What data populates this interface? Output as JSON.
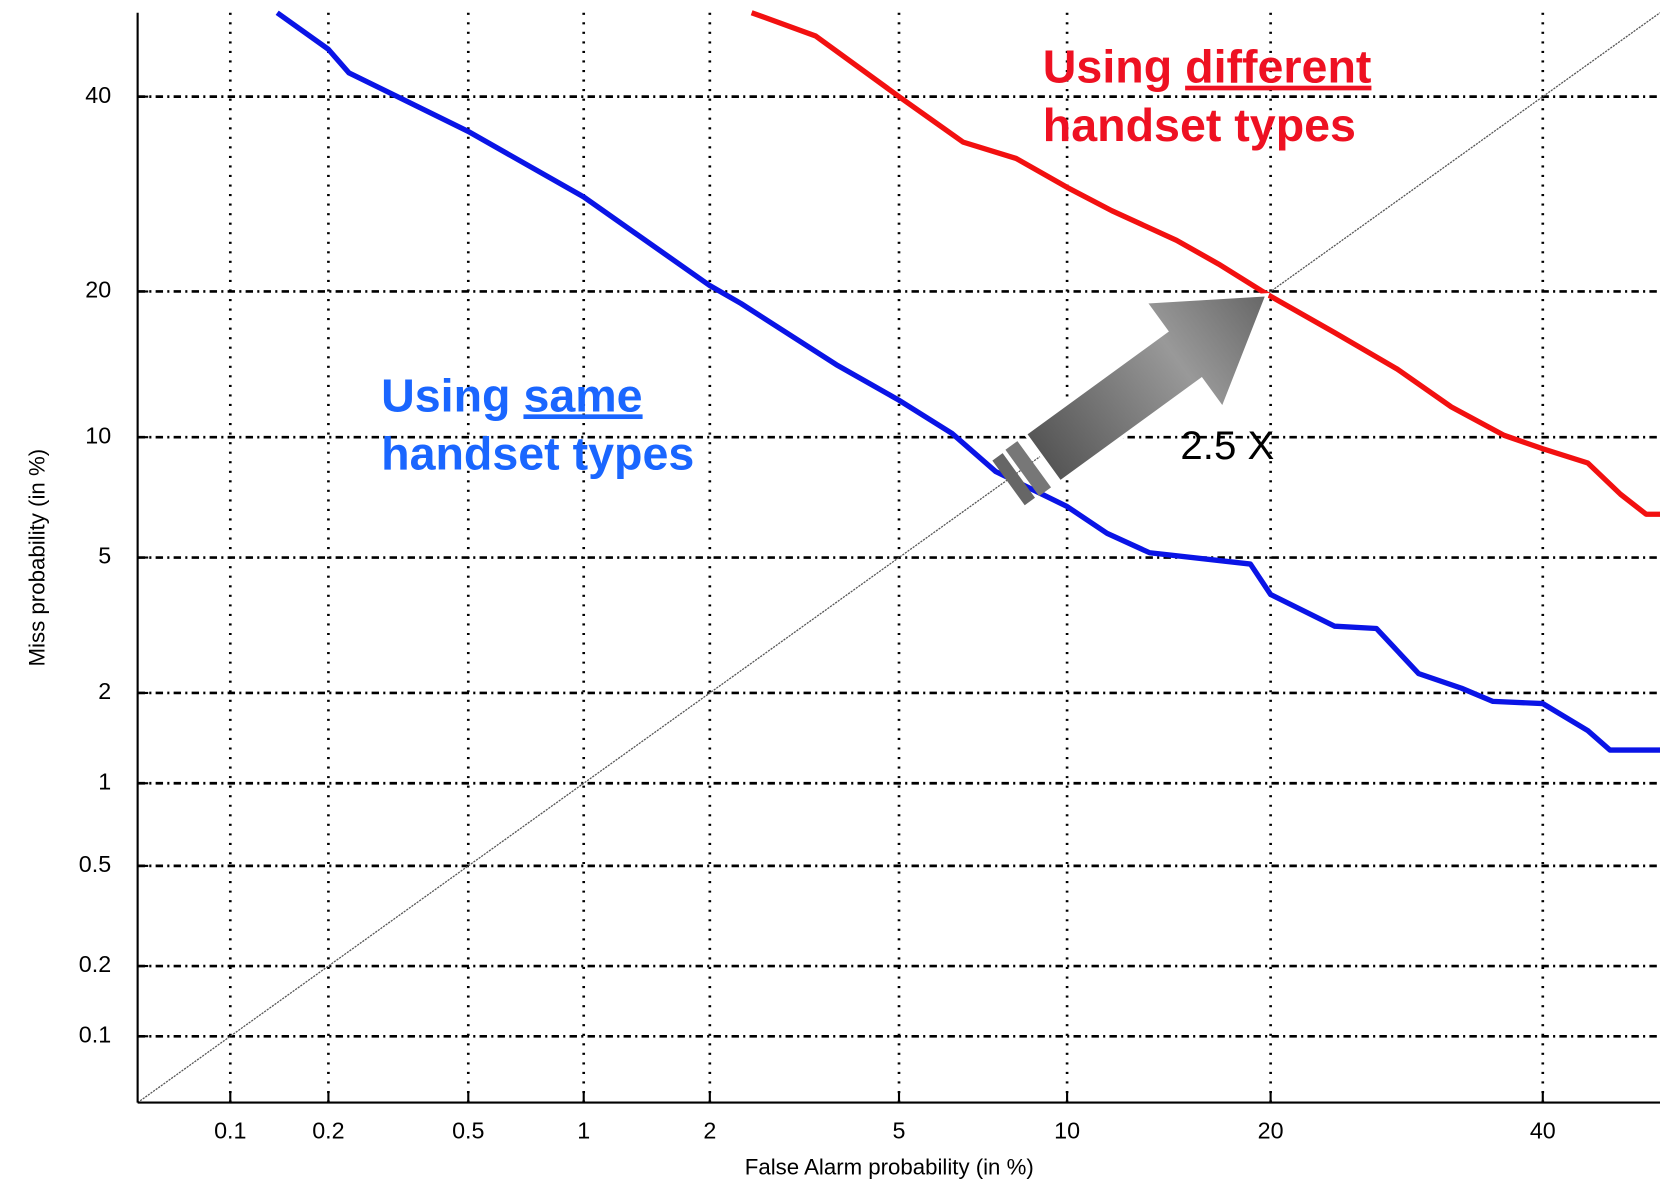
{
  "chart_data": {
    "type": "line",
    "xlabel": "False Alarm probability (in %)",
    "ylabel": "Miss probability (in %)",
    "scale": "normal-deviate",
    "grid": true,
    "xlim": [
      0.05,
      50
    ],
    "ylim": [
      0.05,
      50
    ],
    "xticks": [
      0.1,
      0.2,
      0.5,
      1,
      2,
      5,
      10,
      20,
      40
    ],
    "yticks": [
      0.1,
      0.2,
      0.5,
      1,
      2,
      5,
      10,
      20,
      40
    ],
    "series": [
      {
        "color": "#0a14e6",
        "x": [
          0.14,
          0.2,
          0.23,
          0.5,
          1,
          2,
          2.35,
          3.75,
          5,
          6.3,
          7.55,
          10,
          11.6,
          13.5,
          18.8,
          20,
          24.1,
          27,
          30.1,
          33.4,
          35.9,
          40,
          43.8,
          45.7,
          50
        ],
        "values": [
          50,
          45.6,
          42.8,
          36,
          28.9,
          20.5,
          19,
          14.4,
          12.1,
          10.2,
          8.3,
          6.8,
          5.8,
          5.15,
          4.8,
          3.95,
          3.2,
          3.15,
          2.3,
          2.07,
          1.88,
          1.85,
          1.51,
          1.3,
          1.3
        ]
      },
      {
        "color": "#f21010",
        "x": [
          2.48,
          3.4,
          5,
          6.6,
          8.2,
          10,
          11.8,
          14.8,
          17,
          19.4,
          20,
          24.1,
          28.5,
          32.6,
          36.8,
          40,
          43.8,
          46.6,
          48.8,
          50
        ],
        "values": [
          50,
          47.2,
          40,
          34.8,
          33,
          29.9,
          27.5,
          24.6,
          22.4,
          20.1,
          19.6,
          16.7,
          14.1,
          11.7,
          10.1,
          9.4,
          8.7,
          7.3,
          6.5,
          6.5
        ]
      }
    ],
    "annotations": [
      {
        "lead": "Using",
        "emphasis": "different",
        "rest": "handset types",
        "color": "#ee1122"
      },
      {
        "lead": "Using",
        "emphasis": "same",
        "rest": "handset types",
        "color": "#1a66ff"
      },
      {
        "text": "2.5 X",
        "color": "#000000"
      }
    ]
  }
}
